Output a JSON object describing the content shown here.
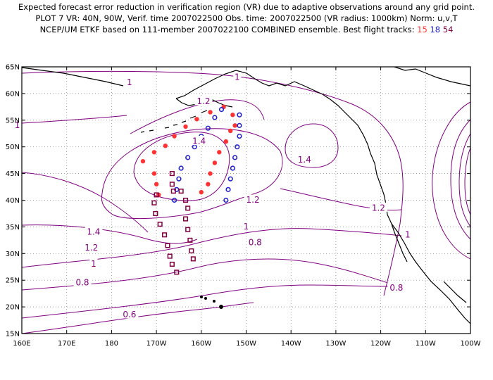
{
  "header": {
    "line1": "Expected forecast error reduction in verification region (VR) due to adaptive observations around any grid point.",
    "line2": "PLOT 7 VR: 40N, 90W, Verif. time 2007022500 Obs. time: 2007022500 (VR radius: 1000km) Norm: u,v,T",
    "line3_prefix": "NCEP/UM ETKF based on 111-member 2007022100 COMBINED ensemble.  Best flight tracks:",
    "track_a": "15",
    "track_b": "18",
    "track_c": "54"
  },
  "colors": {
    "contour": "#800080",
    "vr_circle": "#ff0000",
    "track_15": "#ff3333",
    "track_18": "#2222cc",
    "track_54": "#800040"
  },
  "map": {
    "projection": "latlon",
    "lon_range": [
      160,
      260
    ],
    "lat_range": [
      15,
      65
    ],
    "lat_ticks": [
      "15N",
      "20N",
      "25N",
      "30N",
      "35N",
      "40N",
      "45N",
      "50N",
      "55N",
      "60N",
      "65N"
    ],
    "lon_ticks": [
      "160E",
      "170E",
      "180",
      "170W",
      "160W",
      "150W",
      "140W",
      "130W",
      "120W",
      "110W",
      "100W"
    ],
    "gridlines": "dotted"
  },
  "contour_labels": [
    {
      "text": "1",
      "lon": 184,
      "lat": 62
    },
    {
      "text": "1",
      "lon": 208,
      "lat": 63
    },
    {
      "text": "1",
      "lon": 159,
      "lat": 54
    },
    {
      "text": "1.2",
      "lon": 200.5,
      "lat": 58.5
    },
    {
      "text": "1.4",
      "lon": 199.5,
      "lat": 51
    },
    {
      "text": "1.4",
      "lon": 223,
      "lat": 47.5
    },
    {
      "text": "1.2",
      "lon": 211.5,
      "lat": 40
    },
    {
      "text": "1.2",
      "lon": 239.5,
      "lat": 38.5
    },
    {
      "text": "1.4",
      "lon": 176,
      "lat": 34
    },
    {
      "text": "1",
      "lon": 210,
      "lat": 35
    },
    {
      "text": "1.2",
      "lon": 175.5,
      "lat": 31
    },
    {
      "text": "0.8",
      "lon": 212,
      "lat": 32
    },
    {
      "text": "1",
      "lon": 176,
      "lat": 28
    },
    {
      "text": "1",
      "lon": 246,
      "lat": 33.5
    },
    {
      "text": "0.8",
      "lon": 173.5,
      "lat": 24.5
    },
    {
      "text": "0.8",
      "lon": 243.5,
      "lat": 23.5
    },
    {
      "text": "0.6",
      "lon": 184,
      "lat": 18.5
    }
  ],
  "flight_tracks": [
    {
      "label": "15",
      "color": "#ff3333",
      "marker": "dot",
      "points": [
        [
          205,
          57.5
        ],
        [
          202,
          56.5
        ],
        [
          199,
          55.2
        ],
        [
          196.5,
          53.8
        ],
        [
          194,
          52
        ],
        [
          192,
          50.2
        ],
        [
          189.5,
          49
        ],
        [
          187,
          47.3
        ],
        [
          189.5,
          45
        ],
        [
          190,
          43
        ],
        [
          190.5,
          41
        ],
        [
          207,
          56
        ],
        [
          207.5,
          54
        ],
        [
          206.5,
          53
        ],
        [
          205.5,
          51
        ],
        [
          204,
          49
        ],
        [
          203,
          47
        ],
        [
          202,
          45
        ],
        [
          201.5,
          43
        ],
        [
          200,
          41.5
        ]
      ]
    },
    {
      "label": "18",
      "color": "#2222cc",
      "marker": "ring",
      "points": [
        [
          208.5,
          56
        ],
        [
          208.5,
          54
        ],
        [
          208.5,
          52
        ],
        [
          208,
          50
        ],
        [
          207.5,
          48
        ],
        [
          207,
          46
        ],
        [
          206.5,
          44
        ],
        [
          206,
          42
        ],
        [
          205.5,
          40
        ],
        [
          204.5,
          57
        ],
        [
          203,
          55.5
        ],
        [
          201.5,
          53.5
        ],
        [
          200,
          52
        ],
        [
          198.5,
          50
        ],
        [
          197,
          48
        ],
        [
          195.5,
          46
        ],
        [
          195,
          44
        ],
        [
          194.5,
          42
        ],
        [
          194,
          40
        ]
      ]
    },
    {
      "label": "54",
      "color": "#800040",
      "marker": "square",
      "points": [
        [
          190,
          41
        ],
        [
          189.5,
          39.5
        ],
        [
          189.8,
          37.5
        ],
        [
          190.8,
          35.5
        ],
        [
          191.8,
          33.5
        ],
        [
          192.5,
          31.5
        ],
        [
          193,
          29.5
        ],
        [
          193.5,
          28
        ],
        [
          194.5,
          26.5
        ],
        [
          193.5,
          45
        ],
        [
          193.5,
          43
        ],
        [
          193.8,
          41.7
        ],
        [
          195.5,
          41.7
        ],
        [
          196.5,
          40
        ],
        [
          197,
          38.5
        ],
        [
          196.5,
          36.5
        ],
        [
          197,
          34.5
        ],
        [
          197.5,
          32.5
        ],
        [
          197.8,
          30.5
        ],
        [
          198.2,
          29
        ]
      ]
    }
  ],
  "vr_circle": {
    "lon": 270,
    "lat": 40,
    "radius_km": 1000
  }
}
